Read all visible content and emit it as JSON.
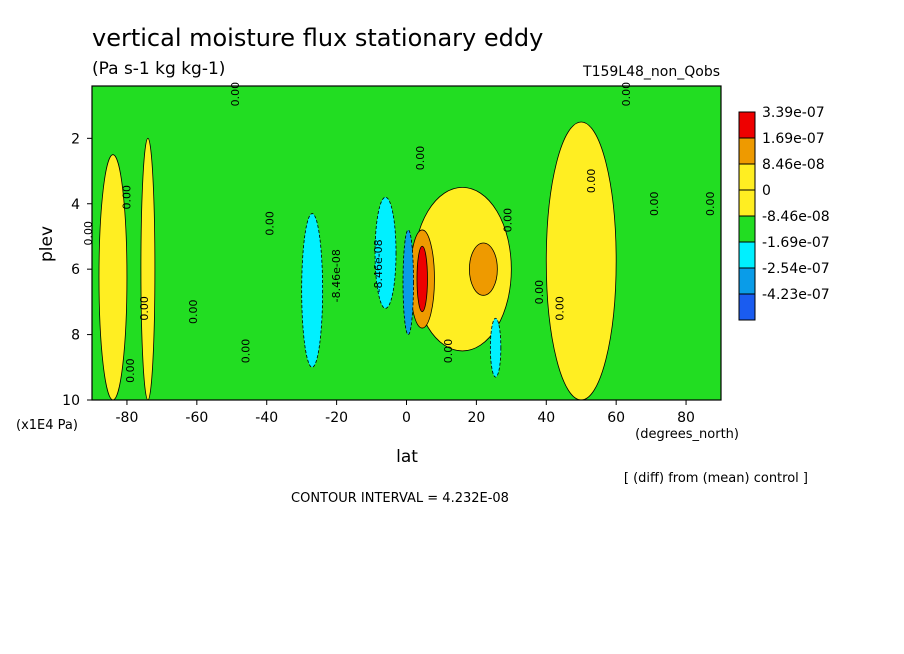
{
  "chart_data": {
    "type": "heatmap",
    "title": "vertical moisture flux stationary eddy",
    "units": "(Pa s-1 kg kg-1)",
    "run_label": "T159L48_non_Qobs",
    "xlabel": "lat",
    "x_unit_label": "(degrees_north)",
    "ylabel": "plev",
    "y_unit_label": "(x1E4 Pa)",
    "xlim": [
      -90,
      90
    ],
    "ylim": [
      10,
      0.4
    ],
    "x_ticks": [
      -80,
      -60,
      -40,
      -20,
      0,
      20,
      40,
      60,
      80
    ],
    "y_ticks": [
      2,
      4,
      6,
      8,
      10
    ],
    "comparison_note": "[ (diff) from (mean) control ]",
    "contour_interval_text": "CONTOUR INTERVAL = 4.232E-08",
    "colorbar": [
      {
        "label": "3.39e-07",
        "color": "#ee0000"
      },
      {
        "label": "1.69e-07",
        "color": "#ee9a00"
      },
      {
        "label": "8.46e-08",
        "color": "#ffee22"
      },
      {
        "label": "0",
        "color": "#ffee22"
      },
      {
        "label": "-8.46e-08",
        "color": "#22dd22"
      },
      {
        "label": "-1.69e-07",
        "color": "#00f0ff"
      },
      {
        "label": "-2.54e-07",
        "color": "#0a9ce8"
      },
      {
        "label": "-4.23e-07",
        "color": "#1a5cf0"
      }
    ],
    "contour_labels": [
      {
        "text": "0.00",
        "lat": -79,
        "plev": 3.8
      },
      {
        "text": "0.00",
        "lat": -90,
        "plev": 4.9
      },
      {
        "text": "0.00",
        "lat": -74,
        "plev": 7.2
      },
      {
        "text": "0.00",
        "lat": -78,
        "plev": 9.1
      },
      {
        "text": "0.00",
        "lat": -60,
        "plev": 7.3
      },
      {
        "text": "0.00",
        "lat": -38,
        "plev": 4.6
      },
      {
        "text": "0.00",
        "lat": -45,
        "plev": 8.5
      },
      {
        "text": "0.00",
        "lat": -48,
        "plev": 0.65
      },
      {
        "text": "0.00",
        "lat": 5,
        "plev": 2.6
      },
      {
        "text": "0.00",
        "lat": 30,
        "plev": 4.5
      },
      {
        "text": "0.00",
        "lat": 39,
        "plev": 6.7
      },
      {
        "text": "0.00",
        "lat": 45,
        "plev": 7.2
      },
      {
        "text": "0.00",
        "lat": 54,
        "plev": 3.3
      },
      {
        "text": "0.00",
        "lat": 64,
        "plev": 0.65
      },
      {
        "text": "0.00",
        "lat": 72,
        "plev": 4.0
      },
      {
        "text": "0.00",
        "lat": 88,
        "plev": 4.0
      },
      {
        "text": "0.00",
        "lat": 13,
        "plev": 8.5
      },
      {
        "text": "-8.46e-08",
        "lat": -19,
        "plev": 6.2
      },
      {
        "text": "-8.46e-08",
        "lat": -7,
        "plev": 5.9
      }
    ],
    "regions": [
      {
        "sign": "positive",
        "level": "0 to 8.46e-08",
        "color": "#ffee22",
        "lat_range": [
          -88,
          -80
        ],
        "plev_range": [
          2.5,
          10
        ]
      },
      {
        "sign": "positive",
        "level": "0 to 8.46e-08",
        "color": "#ffee22",
        "lat_range": [
          -76,
          -72
        ],
        "plev_range": [
          2.0,
          10
        ]
      },
      {
        "sign": "positive",
        "level": "0 to 8.46e-08",
        "color": "#ffee22",
        "lat_range": [
          2,
          30
        ],
        "plev_range": [
          3.5,
          8.5
        ]
      },
      {
        "sign": "positive",
        "level": "0 to 8.46e-08",
        "color": "#ffee22",
        "lat_range": [
          40,
          60
        ],
        "plev_range": [
          1.5,
          10
        ]
      },
      {
        "sign": "positive",
        "level": "8.46e-08 to 1.69e-07",
        "color": "#ee9a00",
        "lat_range": [
          18,
          26
        ],
        "plev_range": [
          5.2,
          6.8
        ]
      },
      {
        "sign": "positive",
        "level": "8.46e-08 to 1.69e-07",
        "color": "#ee9a00",
        "lat_range": [
          1,
          8
        ],
        "plev_range": [
          4.8,
          7.8
        ]
      },
      {
        "sign": "positive",
        "level": "3.39e-07 max",
        "color": "#ee0000",
        "lat_range": [
          3,
          6
        ],
        "plev_range": [
          5.3,
          7.3
        ]
      },
      {
        "sign": "negative",
        "level": "-8.46e-08 to -1.69e-07",
        "color": "#00f0ff",
        "lat_range": [
          -30,
          -24
        ],
        "plev_range": [
          4.3,
          9.0
        ]
      },
      {
        "sign": "negative",
        "level": "-8.46e-08 to -1.69e-07",
        "color": "#00f0ff",
        "lat_range": [
          -9,
          -3
        ],
        "plev_range": [
          3.8,
          7.2
        ]
      },
      {
        "sign": "negative",
        "level": "-1.69e-07 to -2.54e-07",
        "color": "#0a9ce8",
        "lat_range": [
          -1,
          2
        ],
        "plev_range": [
          4.8,
          8.0
        ]
      },
      {
        "sign": "negative",
        "level": "-8.46e-08 to -1.69e-07",
        "color": "#00f0ff",
        "lat_range": [
          24,
          27
        ],
        "plev_range": [
          7.5,
          9.3
        ]
      }
    ]
  }
}
